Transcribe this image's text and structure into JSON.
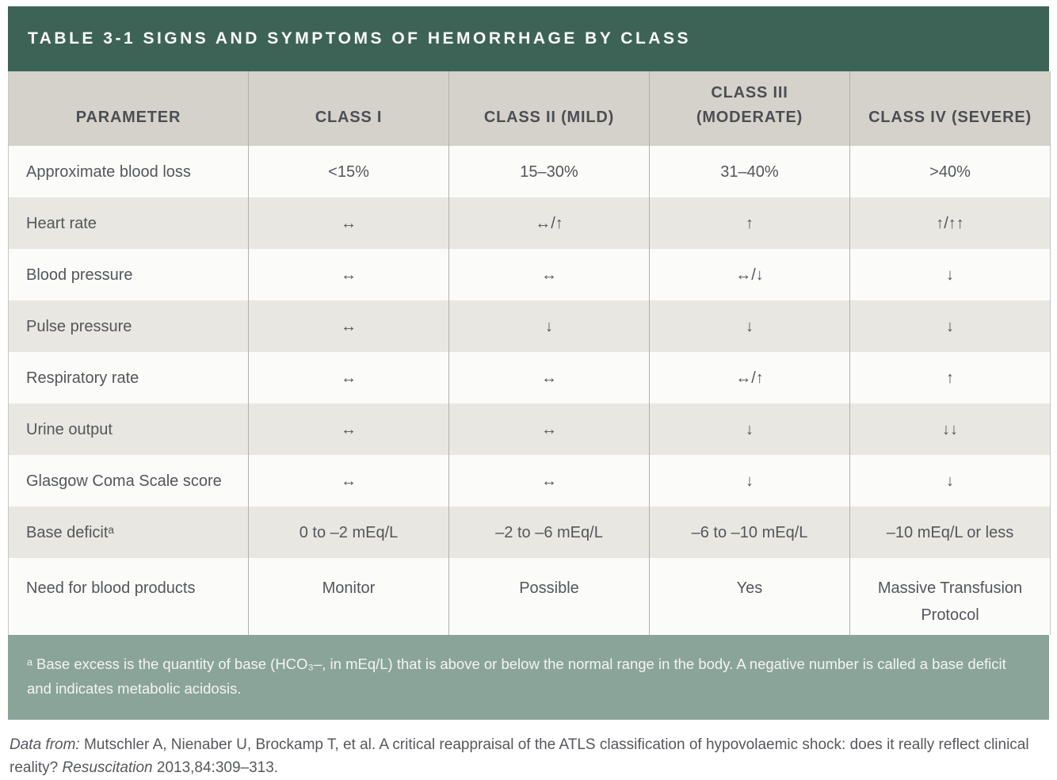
{
  "title": "TABLE 3-1 SIGNS AND SYMPTOMS OF HEMORRHAGE BY CLASS",
  "table": {
    "columns": [
      "PARAMETER",
      "CLASS I",
      "CLASS II (MILD)",
      "CLASS III (MODERATE)",
      "CLASS IV (SEVERE)"
    ],
    "rows": [
      [
        "Approximate blood loss",
        "<15%",
        "15–30%",
        "31–40%",
        ">40%"
      ],
      [
        "Heart rate",
        "↔",
        "↔/↑",
        "↑",
        "↑/↑↑"
      ],
      [
        "Blood pressure",
        "↔",
        "↔",
        "↔/↓",
        "↓"
      ],
      [
        "Pulse pressure",
        "↔",
        "↓",
        "↓",
        "↓"
      ],
      [
        "Respiratory rate",
        "↔",
        "↔",
        "↔/↑",
        "↑"
      ],
      [
        "Urine output",
        "↔",
        "↔",
        "↓",
        "↓↓"
      ],
      [
        "Glasgow Coma Scale score",
        "↔",
        "↔",
        "↓",
        "↓"
      ],
      [
        "Base deficitᵃ",
        "0 to –2 mEq/L",
        "–2 to –6 mEq/L",
        "–6 to –10 mEq/L",
        "–10 mEq/L or less"
      ],
      [
        "Need for blood products",
        "Monitor",
        "Possible",
        "Yes",
        "Massive Transfusion Protocol"
      ]
    ]
  },
  "footnote": "ᵃ Base excess is the quantity of base (HCO₃–, in mEq/L) that is above or below the normal range in the body. A negative number is called a base deficit and indicates metabolic acidosis.",
  "citation": {
    "prefix": "Data from:",
    "body": " Mutschler A, Nienaber U, Brockamp T, et al. A critical reappraisal of the ATLS classification of hypovolaemic shock: does it really reflect clinical reality? ",
    "journal": "Resuscitation",
    "tail": " 2013,84:309–313."
  },
  "colors": {
    "title_bar_green": "#3d6356",
    "header_gray": "#d4d2ca",
    "row_alt_gray": "#e8e7e1",
    "row_white": "#fbfbfa",
    "footnote_sage": "#8ba49a",
    "body_text": "#54565a",
    "divider": "#b3b1ac"
  }
}
